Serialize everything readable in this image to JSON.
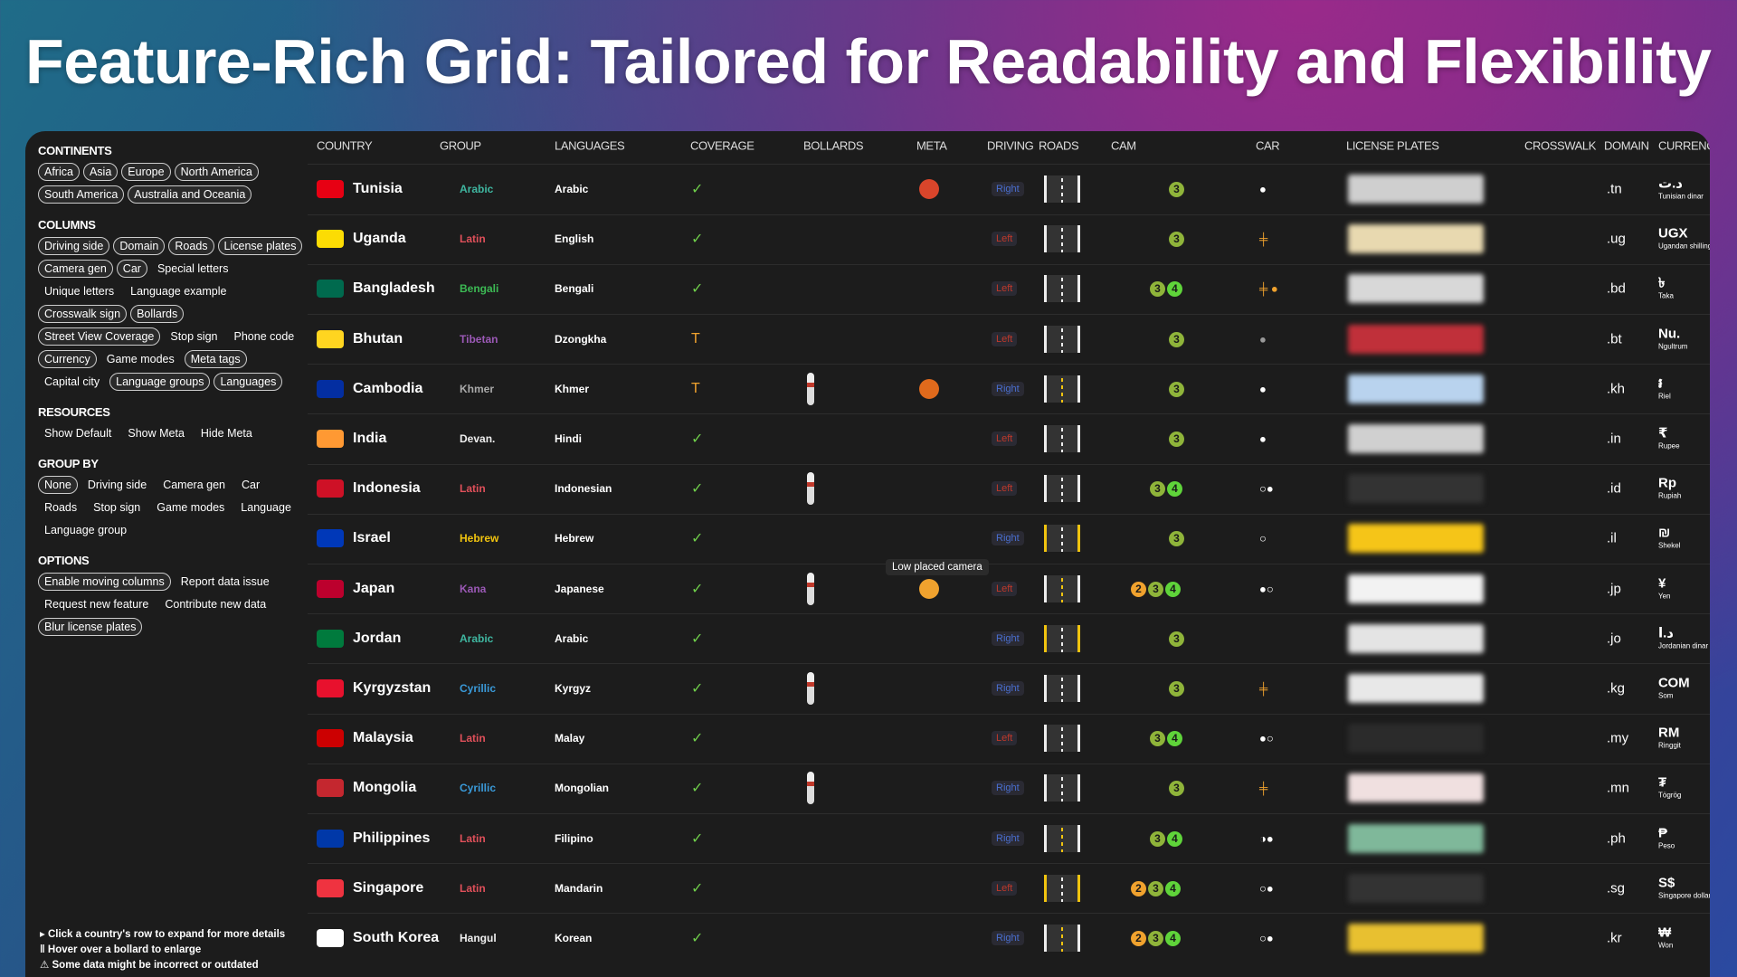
{
  "header": {
    "title": "Feature-Rich Grid: Tailored for Readability and Flexibility"
  },
  "sidebar": {
    "sections": [
      {
        "title": "CONTINENTS",
        "items": [
          {
            "label": "Africa",
            "selected": true
          },
          {
            "label": "Asia",
            "selected": true
          },
          {
            "label": "Europe",
            "selected": true
          },
          {
            "label": "North America",
            "selected": true
          },
          {
            "label": "South America",
            "selected": true
          },
          {
            "label": "Australia and Oceania",
            "selected": true
          }
        ]
      },
      {
        "title": "COLUMNS",
        "items": [
          {
            "label": "Driving side",
            "selected": true
          },
          {
            "label": "Domain",
            "selected": true
          },
          {
            "label": "Roads",
            "selected": true
          },
          {
            "label": "License plates",
            "selected": true
          },
          {
            "label": "Camera gen",
            "selected": true
          },
          {
            "label": "Car",
            "selected": true
          },
          {
            "label": "Special letters",
            "selected": false
          },
          {
            "label": "Unique letters",
            "selected": false
          },
          {
            "label": "Language example",
            "selected": false
          },
          {
            "label": "Crosswalk sign",
            "selected": true
          },
          {
            "label": "Bollards",
            "selected": true
          },
          {
            "label": "Street View Coverage",
            "selected": true
          },
          {
            "label": "Stop sign",
            "selected": false
          },
          {
            "label": "Phone code",
            "selected": false
          },
          {
            "label": "Currency",
            "selected": true
          },
          {
            "label": "Game modes",
            "selected": false
          },
          {
            "label": "Meta tags",
            "selected": true
          },
          {
            "label": "Capital city",
            "selected": false
          },
          {
            "label": "Language groups",
            "selected": true
          },
          {
            "label": "Languages",
            "selected": true
          }
        ]
      },
      {
        "title": "RESOURCES",
        "items": [
          {
            "label": "Show Default",
            "selected": false
          },
          {
            "label": "Show Meta",
            "selected": false
          },
          {
            "label": "Hide Meta",
            "selected": false
          }
        ]
      },
      {
        "title": "GROUP BY",
        "items": [
          {
            "label": "None",
            "selected": true
          },
          {
            "label": "Driving side",
            "selected": false
          },
          {
            "label": "Camera gen",
            "selected": false
          },
          {
            "label": "Car",
            "selected": false
          },
          {
            "label": "Roads",
            "selected": false
          },
          {
            "label": "Stop sign",
            "selected": false
          },
          {
            "label": "Game modes",
            "selected": false
          },
          {
            "label": "Language",
            "selected": false
          },
          {
            "label": "Language group",
            "selected": false
          }
        ]
      },
      {
        "title": "OPTIONS",
        "items": [
          {
            "label": "Enable moving columns",
            "selected": true
          },
          {
            "label": "Report data issue",
            "selected": false
          },
          {
            "label": "Request new feature",
            "selected": false
          },
          {
            "label": "Contribute new data",
            "selected": false
          },
          {
            "label": "Blur license plates",
            "selected": true
          }
        ]
      }
    ],
    "notes": [
      "▸ Click a country's row to expand for more details",
      "‖ Hover over a bollard to enlarge",
      "⚠ Some data might be incorrect or outdated"
    ]
  },
  "table": {
    "columns": [
      "COUNTRY",
      "GROUP",
      "LANGUAGES",
      "COVERAGE",
      "BOLLARDS",
      "META",
      "DRIVING",
      "ROADS",
      "CAM",
      "CAR",
      "LICENSE PLATES",
      "CROSSWALK",
      "DOMAIN",
      "CURRENCY"
    ],
    "tooltip": "Low placed camera",
    "cam_colors": {
      "2": "#f0a22e",
      "3": "#8fb43a",
      "4": "#5fd43a"
    },
    "rows": [
      {
        "country": "Tunisia",
        "flag": "#e70013",
        "group": "Arabic",
        "group_color": "#3fb6a0",
        "language": "Arabic",
        "coverage": "✓",
        "bollard": false,
        "meta": "#d9452b",
        "driving": "Right",
        "driving_color": "#4a6fd0",
        "road_edge": "#eee",
        "road_center": "#eee",
        "cam": [
          3
        ],
        "car": "●",
        "car_color": "#fff",
        "plate": "#cfcfcf",
        "domain": ".tn",
        "currency": "د.ت",
        "currency_name": "Tunisian dinar"
      },
      {
        "country": "Uganda",
        "flag": "#fcdc04",
        "group": "Latin",
        "group_color": "#e0505a",
        "language": "English",
        "coverage": "✓",
        "bollard": false,
        "meta": null,
        "driving": "Left",
        "driving_color": "#c0392b",
        "road_edge": "#eee",
        "road_center": "#eee",
        "cam": [
          3
        ],
        "car": "╪",
        "car_color": "#f0a22e",
        "plate": "#e8d9b0",
        "domain": ".ug",
        "currency": "UGX",
        "currency_name": "Ugandan shilling"
      },
      {
        "country": "Bangladesh",
        "flag": "#006a4e",
        "group": "Bengali",
        "group_color": "#3cba54",
        "language": "Bengali",
        "coverage": "✓",
        "bollard": false,
        "meta": null,
        "driving": "Left",
        "driving_color": "#c0392b",
        "road_edge": "#eee",
        "road_center": "#eee",
        "cam": [
          3,
          4
        ],
        "car": "╪ ●",
        "car_color": "#f0a22e",
        "plate": "#d8d8d8",
        "domain": ".bd",
        "currency": "৳",
        "currency_name": "Taka"
      },
      {
        "country": "Bhutan",
        "flag": "#ffd520",
        "group": "Tibetan",
        "group_color": "#9b59b6",
        "language": "Dzongkha",
        "coverage": "T",
        "bollard": false,
        "meta": null,
        "driving": "Left",
        "driving_color": "#c0392b",
        "road_edge": "#eee",
        "road_center": "#eee",
        "cam": [
          3
        ],
        "car": "●",
        "car_color": "#999",
        "plate": "#c0303a",
        "domain": ".bt",
        "currency": "Nu.",
        "currency_name": "Ngultrum"
      },
      {
        "country": "Cambodia",
        "flag": "#032ea1",
        "group": "Khmer",
        "group_color": "#aaa",
        "language": "Khmer",
        "coverage": "T",
        "bollard": true,
        "meta": "#e06a1c",
        "driving": "Right",
        "driving_color": "#4a6fd0",
        "road_edge": "#eee",
        "road_center": "#f1c40f",
        "cam": [
          3
        ],
        "car": "●",
        "car_color": "#fff",
        "plate": "#b9d3ee",
        "domain": ".kh",
        "currency": "៛",
        "currency_name": "Riel"
      },
      {
        "country": "India",
        "flag": "#ff9933",
        "group": "Devan.",
        "group_color": "#eee",
        "language": "Hindi",
        "coverage": "✓",
        "bollard": false,
        "meta": null,
        "driving": "Left",
        "driving_color": "#c0392b",
        "road_edge": "#eee",
        "road_center": "#eee",
        "cam": [
          3
        ],
        "car": "●",
        "car_color": "#fff",
        "plate": "#d0d0d0",
        "domain": ".in",
        "currency": "₹",
        "currency_name": "Rupee"
      },
      {
        "country": "Indonesia",
        "flag": "#ce1126",
        "group": "Latin",
        "group_color": "#e0505a",
        "language": "Indonesian",
        "coverage": "✓",
        "bollard": true,
        "meta": null,
        "driving": "Left",
        "driving_color": "#c0392b",
        "road_edge": "#eee",
        "road_center": "#eee",
        "cam": [
          3,
          4
        ],
        "car": "○●",
        "car_color": "#fff",
        "plate": "#333",
        "domain": ".id",
        "currency": "Rp",
        "currency_name": "Rupiah"
      },
      {
        "country": "Israel",
        "flag": "#0038b8",
        "group": "Hebrew",
        "group_color": "#f1c40f",
        "language": "Hebrew",
        "coverage": "✓",
        "bollard": false,
        "meta": null,
        "driving": "Right",
        "driving_color": "#4a6fd0",
        "road_edge": "#f1c40f",
        "road_center": "#eee",
        "cam": [
          3
        ],
        "car": "○",
        "car_color": "#fff",
        "plate": "#f5c518",
        "domain": ".il",
        "currency": "₪",
        "currency_name": "Shekel"
      },
      {
        "country": "Japan",
        "flag": "#bc002d",
        "group": "Kana",
        "group_color": "#9b59b6",
        "language": "Japanese",
        "coverage": "✓",
        "bollard": true,
        "meta": "#f0a22e",
        "driving": "Left",
        "driving_color": "#c0392b",
        "road_edge": "#eee",
        "road_center": "#f1c40f",
        "cam": [
          2,
          3,
          4
        ],
        "car": "●○",
        "car_color": "#fff",
        "plate": "#f2f2f2",
        "domain": ".jp",
        "currency": "¥",
        "currency_name": "Yen"
      },
      {
        "country": "Jordan",
        "flag": "#007a3d",
        "group": "Arabic",
        "group_color": "#3fb6a0",
        "language": "Arabic",
        "coverage": "✓",
        "bollard": false,
        "meta": null,
        "driving": "Right",
        "driving_color": "#4a6fd0",
        "road_edge": "#f1c40f",
        "road_center": "#eee",
        "cam": [
          3
        ],
        "car": "",
        "car_color": "#fff",
        "plate": "#e4e4e4",
        "domain": ".jo",
        "currency": "د.ا",
        "currency_name": "Jordanian dinar"
      },
      {
        "country": "Kyrgyzstan",
        "flag": "#e8112d",
        "group": "Cyrillic",
        "group_color": "#3a9ad9",
        "language": "Kyrgyz",
        "coverage": "✓",
        "bollard": true,
        "meta": null,
        "driving": "Right",
        "driving_color": "#4a6fd0",
        "road_edge": "#eee",
        "road_center": "#eee",
        "cam": [
          3
        ],
        "car": "╪",
        "car_color": "#f0a22e",
        "plate": "#e8e8e8",
        "domain": ".kg",
        "currency": "СОМ",
        "currency_name": "Som"
      },
      {
        "country": "Malaysia",
        "flag": "#cc0001",
        "group": "Latin",
        "group_color": "#e0505a",
        "language": "Malay",
        "coverage": "✓",
        "bollard": false,
        "meta": null,
        "driving": "Left",
        "driving_color": "#c0392b",
        "road_edge": "#eee",
        "road_center": "#eee",
        "cam": [
          3,
          4
        ],
        "car": "●○",
        "car_color": "#fff",
        "plate": "#2b2b2b",
        "domain": ".my",
        "currency": "RM",
        "currency_name": "Ringgit"
      },
      {
        "country": "Mongolia",
        "flag": "#c4272f",
        "group": "Cyrillic",
        "group_color": "#3a9ad9",
        "language": "Mongolian",
        "coverage": "✓",
        "bollard": true,
        "meta": null,
        "driving": "Right",
        "driving_color": "#4a6fd0",
        "road_edge": "#eee",
        "road_center": "#eee",
        "cam": [
          3
        ],
        "car": "╪",
        "car_color": "#f0a22e",
        "plate": "#f0e0e0",
        "domain": ".mn",
        "currency": "₮",
        "currency_name": "Tögrög"
      },
      {
        "country": "Philippines",
        "flag": "#0038a8",
        "group": "Latin",
        "group_color": "#e0505a",
        "language": "Filipino",
        "coverage": "✓",
        "bollard": false,
        "meta": null,
        "driving": "Right",
        "driving_color": "#4a6fd0",
        "road_edge": "#eee",
        "road_center": "#f1c40f",
        "cam": [
          3,
          4
        ],
        "car": "◑●",
        "car_color": "#fff",
        "plate": "#7fb89a",
        "domain": ".ph",
        "currency": "₱",
        "currency_name": "Peso"
      },
      {
        "country": "Singapore",
        "flag": "#ef3340",
        "group": "Latin",
        "group_color": "#e0505a",
        "language": "Mandarin",
        "coverage": "✓",
        "bollard": false,
        "meta": null,
        "driving": "Left",
        "driving_color": "#c0392b",
        "road_edge": "#f1c40f",
        "road_center": "#eee",
        "cam": [
          2,
          3,
          4
        ],
        "car": "○●",
        "car_color": "#fff",
        "plate": "#333",
        "domain": ".sg",
        "currency": "S$",
        "currency_name": "Singapore dollar"
      },
      {
        "country": "South Korea",
        "flag": "#ffffff",
        "group": "Hangul",
        "group_color": "#eee",
        "language": "Korean",
        "coverage": "✓",
        "bollard": false,
        "meta": null,
        "driving": "Right",
        "driving_color": "#4a6fd0",
        "road_edge": "#eee",
        "road_center": "#f1c40f",
        "cam": [
          2,
          3,
          4
        ],
        "car": "○●",
        "car_color": "#fff",
        "plate": "#e8c030",
        "domain": ".kr",
        "currency": "₩",
        "currency_name": "Won"
      }
    ]
  }
}
